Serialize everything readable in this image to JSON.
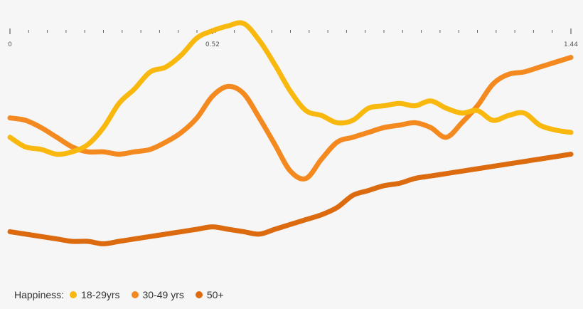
{
  "chart_data": {
    "type": "line",
    "title": "",
    "xlabel": "",
    "ylabel": "",
    "xlim": [
      0,
      1.44
    ],
    "x_tick_labels": [
      {
        "value": 0,
        "label": "0"
      },
      {
        "value": 0.52,
        "label": "0.52"
      },
      {
        "value": 1.44,
        "label": "1.44"
      }
    ],
    "minor_tick_step": 0.048,
    "ylim": [
      0,
      100
    ],
    "grid": false,
    "legend": {
      "position": "bottom-left",
      "title": "Happiness:"
    },
    "x": [
      0,
      0.04,
      0.08,
      0.12,
      0.16,
      0.2,
      0.24,
      0.28,
      0.32,
      0.36,
      0.4,
      0.44,
      0.48,
      0.52,
      0.56,
      0.6,
      0.64,
      0.68,
      0.72,
      0.76,
      0.8,
      0.84,
      0.88,
      0.92,
      0.96,
      1.0,
      1.04,
      1.08,
      1.12,
      1.16,
      1.2,
      1.24,
      1.28,
      1.32,
      1.36,
      1.4,
      1.44
    ],
    "series": [
      {
        "name": "18-29yrs",
        "color": "#f8b80e",
        "values": [
          58,
          54,
          53,
          51,
          52,
          55,
          62,
          72,
          78,
          85,
          87,
          92,
          99,
          102,
          104,
          105,
          98,
          88,
          77,
          69,
          67,
          64,
          65,
          70,
          71,
          72,
          71,
          73,
          70,
          68,
          69,
          65,
          67,
          68,
          63,
          61,
          60
        ]
      },
      {
        "name": "30-49 yrs",
        "color": "#f4891f",
        "values": [
          66,
          65,
          62,
          58,
          54,
          52,
          52,
          51,
          52,
          53,
          56,
          60,
          66,
          75,
          79,
          76,
          66,
          55,
          44,
          41,
          49,
          56,
          58,
          60,
          62,
          63,
          64,
          62,
          58,
          64,
          71,
          80,
          84,
          85,
          87,
          89,
          91
        ]
      },
      {
        "name": "50+",
        "color": "#dc6a0f",
        "values": [
          19,
          18,
          17,
          16,
          15,
          15,
          14,
          15,
          16,
          17,
          18,
          19,
          20,
          21,
          20,
          19,
          18,
          20,
          22,
          24,
          26,
          29,
          34,
          36,
          38,
          39,
          41,
          42,
          43,
          44,
          45,
          46,
          47,
          48,
          49,
          50,
          51
        ]
      }
    ]
  }
}
